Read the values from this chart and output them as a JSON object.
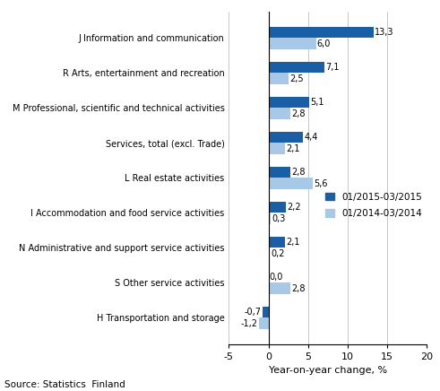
{
  "categories": [
    "H Transportation and storage",
    "S Other service activities",
    "N Administrative and support service activities",
    "I Accommodation and food service activities",
    "L Real estate activities",
    "Services, total (excl. Trade)",
    "M Professional, scientific and technical activities",
    "R Arts, entertainment and recreation",
    "J Information and communication"
  ],
  "values_2015": [
    -0.7,
    0.0,
    2.1,
    2.2,
    2.8,
    4.4,
    5.1,
    7.1,
    13.3
  ],
  "values_2014": [
    -1.2,
    2.8,
    0.2,
    0.3,
    5.6,
    2.1,
    2.8,
    2.5,
    6.0
  ],
  "labels_2015": [
    "-0,7",
    "0,0",
    "2,1",
    "2,2",
    "2,8",
    "4,4",
    "5,1",
    "7,1",
    "13,3"
  ],
  "labels_2014": [
    "-1,2",
    "2,8",
    "0,2",
    "0,3",
    "5,6",
    "2,1",
    "2,8",
    "2,5",
    "6,0"
  ],
  "color_2015": "#1A5EA6",
  "color_2014": "#A8C8E8",
  "xlabel": "Year-on-year change, %",
  "legend_2015": "01/2015-03/2015",
  "legend_2014": "01/2014-03/2014",
  "xlim": [
    -5,
    20
  ],
  "xticks": [
    -5,
    0,
    5,
    10,
    15,
    20
  ],
  "source": "Source: Statistics  Finland",
  "bar_height": 0.32
}
